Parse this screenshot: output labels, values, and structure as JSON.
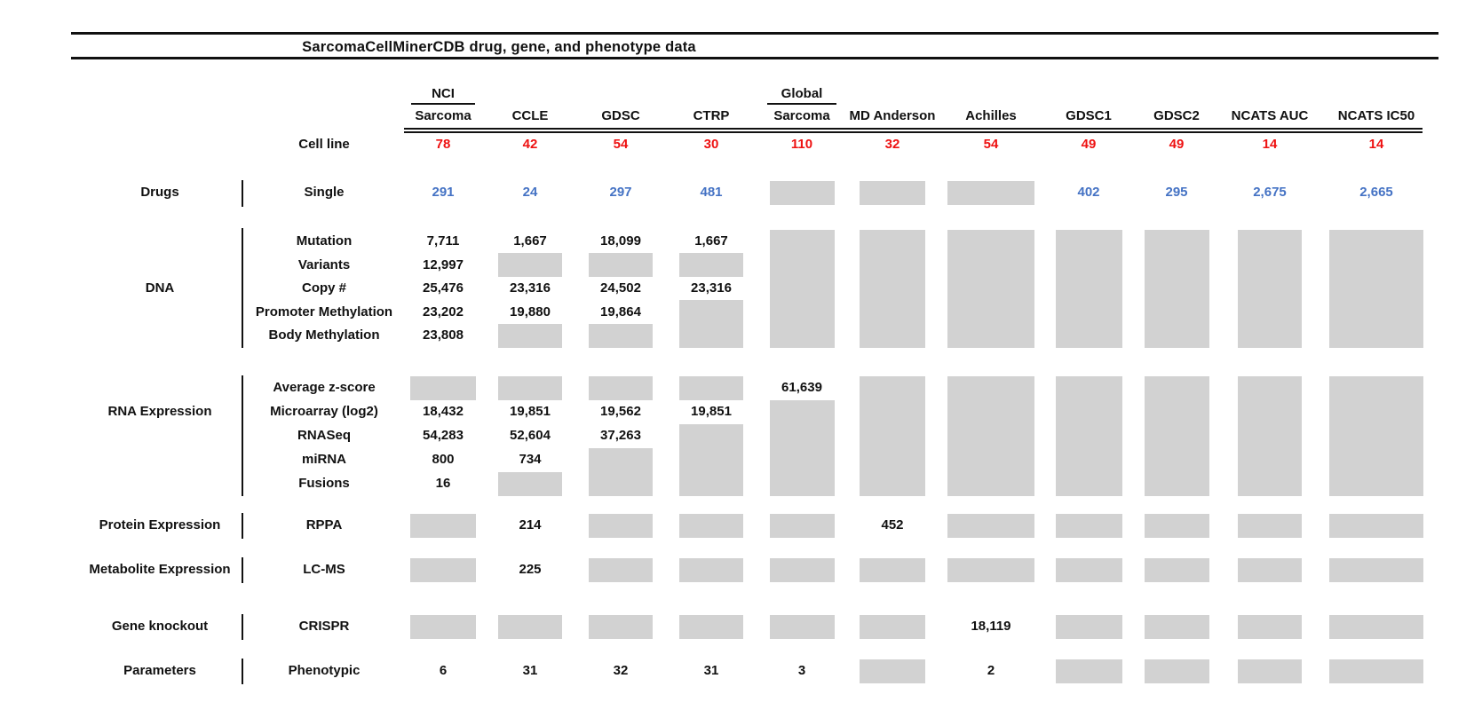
{
  "title": "SarcomaCellMinerCDB drug, gene, and phenotype data",
  "colors": {
    "red_counts": "#ee1111",
    "blue_drug_counts": "#4472c4",
    "gray_no_data_box": "#d2d2d2",
    "text": "#111111"
  },
  "chart_data": {
    "type": "table",
    "title": "SarcomaCellMinerCDB drug, gene, and phenotype data",
    "columns": [
      {
        "top": "NCI",
        "label": "Sarcoma"
      },
      {
        "label": "CCLE"
      },
      {
        "label": "GDSC"
      },
      {
        "label": "CTRP"
      },
      {
        "top": "Global",
        "label": "Sarcoma"
      },
      {
        "label": "MD Anderson"
      },
      {
        "label": "Achilles"
      },
      {
        "label": "GDSC1"
      },
      {
        "label": "GDSC2"
      },
      {
        "label": "NCATS AUC"
      },
      {
        "label": "NCATS IC50"
      }
    ],
    "cell_line": {
      "label": "Cell line",
      "value_color": "red",
      "values": [
        "78",
        "42",
        "54",
        "30",
        "110",
        "32",
        "54",
        "49",
        "49",
        "14",
        "14"
      ]
    },
    "sections": [
      {
        "category": "Drugs",
        "value_color": "blue",
        "rows": [
          {
            "label": "Single",
            "cells": [
              "291",
              "24",
              "297",
              "481",
              {
                "gray": 1
              },
              {
                "gray": 1
              },
              {
                "gray": 1
              },
              "402",
              "295",
              "2,675",
              "2,665"
            ]
          }
        ]
      },
      {
        "category": "DNA",
        "rows": [
          {
            "label": "Mutation",
            "cells": [
              "7,711",
              "1,667",
              "18,099",
              "1,667",
              {
                "gray": 5
              },
              {
                "gray": 5
              },
              {
                "gray": 5
              },
              {
                "gray": 5
              },
              {
                "gray": 5
              },
              {
                "gray": 5
              },
              {
                "gray": 5
              }
            ]
          },
          {
            "label": "Variants",
            "cells": [
              "12,997",
              {
                "gray": 1
              },
              {
                "gray": 1
              },
              {
                "gray": 1
              },
              null,
              null,
              null,
              null,
              null,
              null,
              null
            ]
          },
          {
            "label": "Copy #",
            "cells": [
              "25,476",
              "23,316",
              "24,502",
              "23,316",
              null,
              null,
              null,
              null,
              null,
              null,
              null
            ]
          },
          {
            "label": "Promoter Methylation",
            "cells": [
              "23,202",
              "19,880",
              "19,864",
              {
                "gray": 2
              },
              null,
              null,
              null,
              null,
              null,
              null,
              null
            ]
          },
          {
            "label": "Body Methylation",
            "cells": [
              "23,808",
              {
                "gray": 1
              },
              {
                "gray": 1
              },
              null,
              null,
              null,
              null,
              null,
              null,
              null,
              null
            ]
          }
        ]
      },
      {
        "category": "RNA Expression",
        "rows": [
          {
            "label": "Average z-score",
            "cells": [
              {
                "gray": 1
              },
              {
                "gray": 1
              },
              {
                "gray": 1
              },
              {
                "gray": 1
              },
              "61,639",
              {
                "gray": 5
              },
              {
                "gray": 5
              },
              {
                "gray": 5
              },
              {
                "gray": 5
              },
              {
                "gray": 5
              },
              {
                "gray": 5
              }
            ]
          },
          {
            "label": "Microarray (log2)",
            "cells": [
              "18,432",
              "19,851",
              "19,562",
              "19,851",
              {
                "gray": 4
              },
              null,
              null,
              null,
              null,
              null,
              null
            ]
          },
          {
            "label": "RNASeq",
            "cells": [
              "54,283",
              "52,604",
              "37,263",
              {
                "gray": 3
              },
              null,
              null,
              null,
              null,
              null,
              null,
              null
            ]
          },
          {
            "label": "miRNA",
            "cells": [
              "800",
              "734",
              {
                "gray": 2
              },
              null,
              null,
              null,
              null,
              null,
              null,
              null,
              null
            ]
          },
          {
            "label": "Fusions",
            "cells": [
              "16",
              {
                "gray": 1
              },
              null,
              null,
              null,
              null,
              null,
              null,
              null,
              null,
              null
            ]
          }
        ]
      },
      {
        "category": "Protein Expression",
        "rows": [
          {
            "label": "RPPA",
            "cells": [
              {
                "gray": 1
              },
              "214",
              {
                "gray": 1
              },
              {
                "gray": 1
              },
              {
                "gray": 1
              },
              "452",
              {
                "gray": 1
              },
              {
                "gray": 1
              },
              {
                "gray": 1
              },
              {
                "gray": 1
              },
              {
                "gray": 1
              }
            ]
          }
        ]
      },
      {
        "category": "Metabolite Expression",
        "rows": [
          {
            "label": "LC-MS",
            "cells": [
              {
                "gray": 1
              },
              "225",
              {
                "gray": 1
              },
              {
                "gray": 1
              },
              {
                "gray": 1
              },
              {
                "gray": 1
              },
              {
                "gray": 1
              },
              {
                "gray": 1
              },
              {
                "gray": 1
              },
              {
                "gray": 1
              },
              {
                "gray": 1
              }
            ]
          }
        ]
      },
      {
        "category": "Gene knockout",
        "rows": [
          {
            "label": "CRISPR",
            "cells": [
              {
                "gray": 1
              },
              {
                "gray": 1
              },
              {
                "gray": 1
              },
              {
                "gray": 1
              },
              {
                "gray": 1
              },
              {
                "gray": 1
              },
              "18,119",
              {
                "gray": 1
              },
              {
                "gray": 1
              },
              {
                "gray": 1
              },
              {
                "gray": 1
              }
            ]
          }
        ]
      },
      {
        "category": "Parameters",
        "rows": [
          {
            "label": "Phenotypic",
            "cells": [
              "6",
              "31",
              "32",
              "31",
              "3",
              {
                "gray": 1
              },
              "2",
              {
                "gray": 1
              },
              {
                "gray": 1
              },
              {
                "gray": 1
              },
              {
                "gray": 1
              }
            ]
          }
        ]
      }
    ]
  }
}
